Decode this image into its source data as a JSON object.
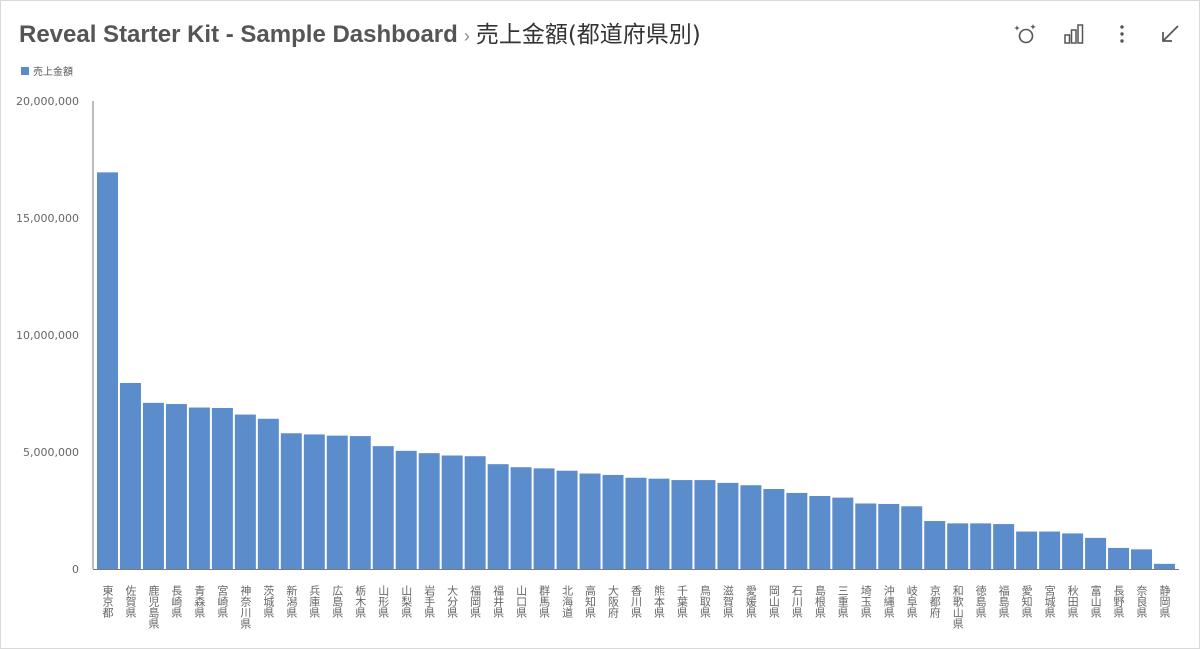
{
  "header": {
    "dashboard_title": "Reveal Starter Kit - Sample Dashboard",
    "separator": "›",
    "widget_title": "売上金額(都道府県別)"
  },
  "toolbar": {
    "icons": [
      "ai-insights-icon",
      "chart-type-icon",
      "more-vertical-icon",
      "minimize-icon"
    ]
  },
  "legend": {
    "label": "売上金額",
    "color": "#5b8ccc"
  },
  "chart_data": {
    "type": "bar",
    "title": "",
    "xlabel": "",
    "ylabel": "",
    "ylim": [
      0,
      20000000
    ],
    "yticks": [
      0,
      5000000,
      10000000,
      15000000,
      20000000
    ],
    "ytick_labels": [
      "0",
      "5,000,000",
      "10,000,000",
      "15,000,000",
      "20,000,000"
    ],
    "grid": false,
    "legend_position": "top-left",
    "bar_color": "#5b8ccc",
    "series": [
      {
        "name": "売上金額"
      }
    ],
    "categories": [
      "東京都",
      "佐賀県",
      "鹿児島県",
      "長崎県",
      "青森県",
      "宮崎県",
      "神奈川県",
      "茨城県",
      "新潟県",
      "兵庫県",
      "広島県",
      "栃木県",
      "山形県",
      "山梨県",
      "岩手県",
      "大分県",
      "福岡県",
      "福井県",
      "山口県",
      "群馬県",
      "北海道",
      "高知県",
      "大阪府",
      "香川県",
      "熊本県",
      "千葉県",
      "鳥取県",
      "滋賀県",
      "愛媛県",
      "岡山県",
      "石川県",
      "島根県",
      "三重県",
      "埼玉県",
      "沖縄県",
      "岐阜県",
      "京都府",
      "和歌山県",
      "徳島県",
      "福島県",
      "愛知県",
      "宮城県",
      "秋田県",
      "富山県",
      "長野県",
      "奈良県",
      "静岡県"
    ],
    "values": [
      16950000,
      7950000,
      7100000,
      7050000,
      6900000,
      6880000,
      6600000,
      6420000,
      5800000,
      5750000,
      5700000,
      5680000,
      5250000,
      5050000,
      4950000,
      4850000,
      4820000,
      4480000,
      4350000,
      4300000,
      4200000,
      4080000,
      4020000,
      3900000,
      3860000,
      3800000,
      3800000,
      3680000,
      3580000,
      3420000,
      3250000,
      3120000,
      3050000,
      2800000,
      2780000,
      2680000,
      2050000,
      1950000,
      1950000,
      1920000,
      1600000,
      1600000,
      1520000,
      1330000,
      900000,
      840000,
      220000
    ]
  }
}
